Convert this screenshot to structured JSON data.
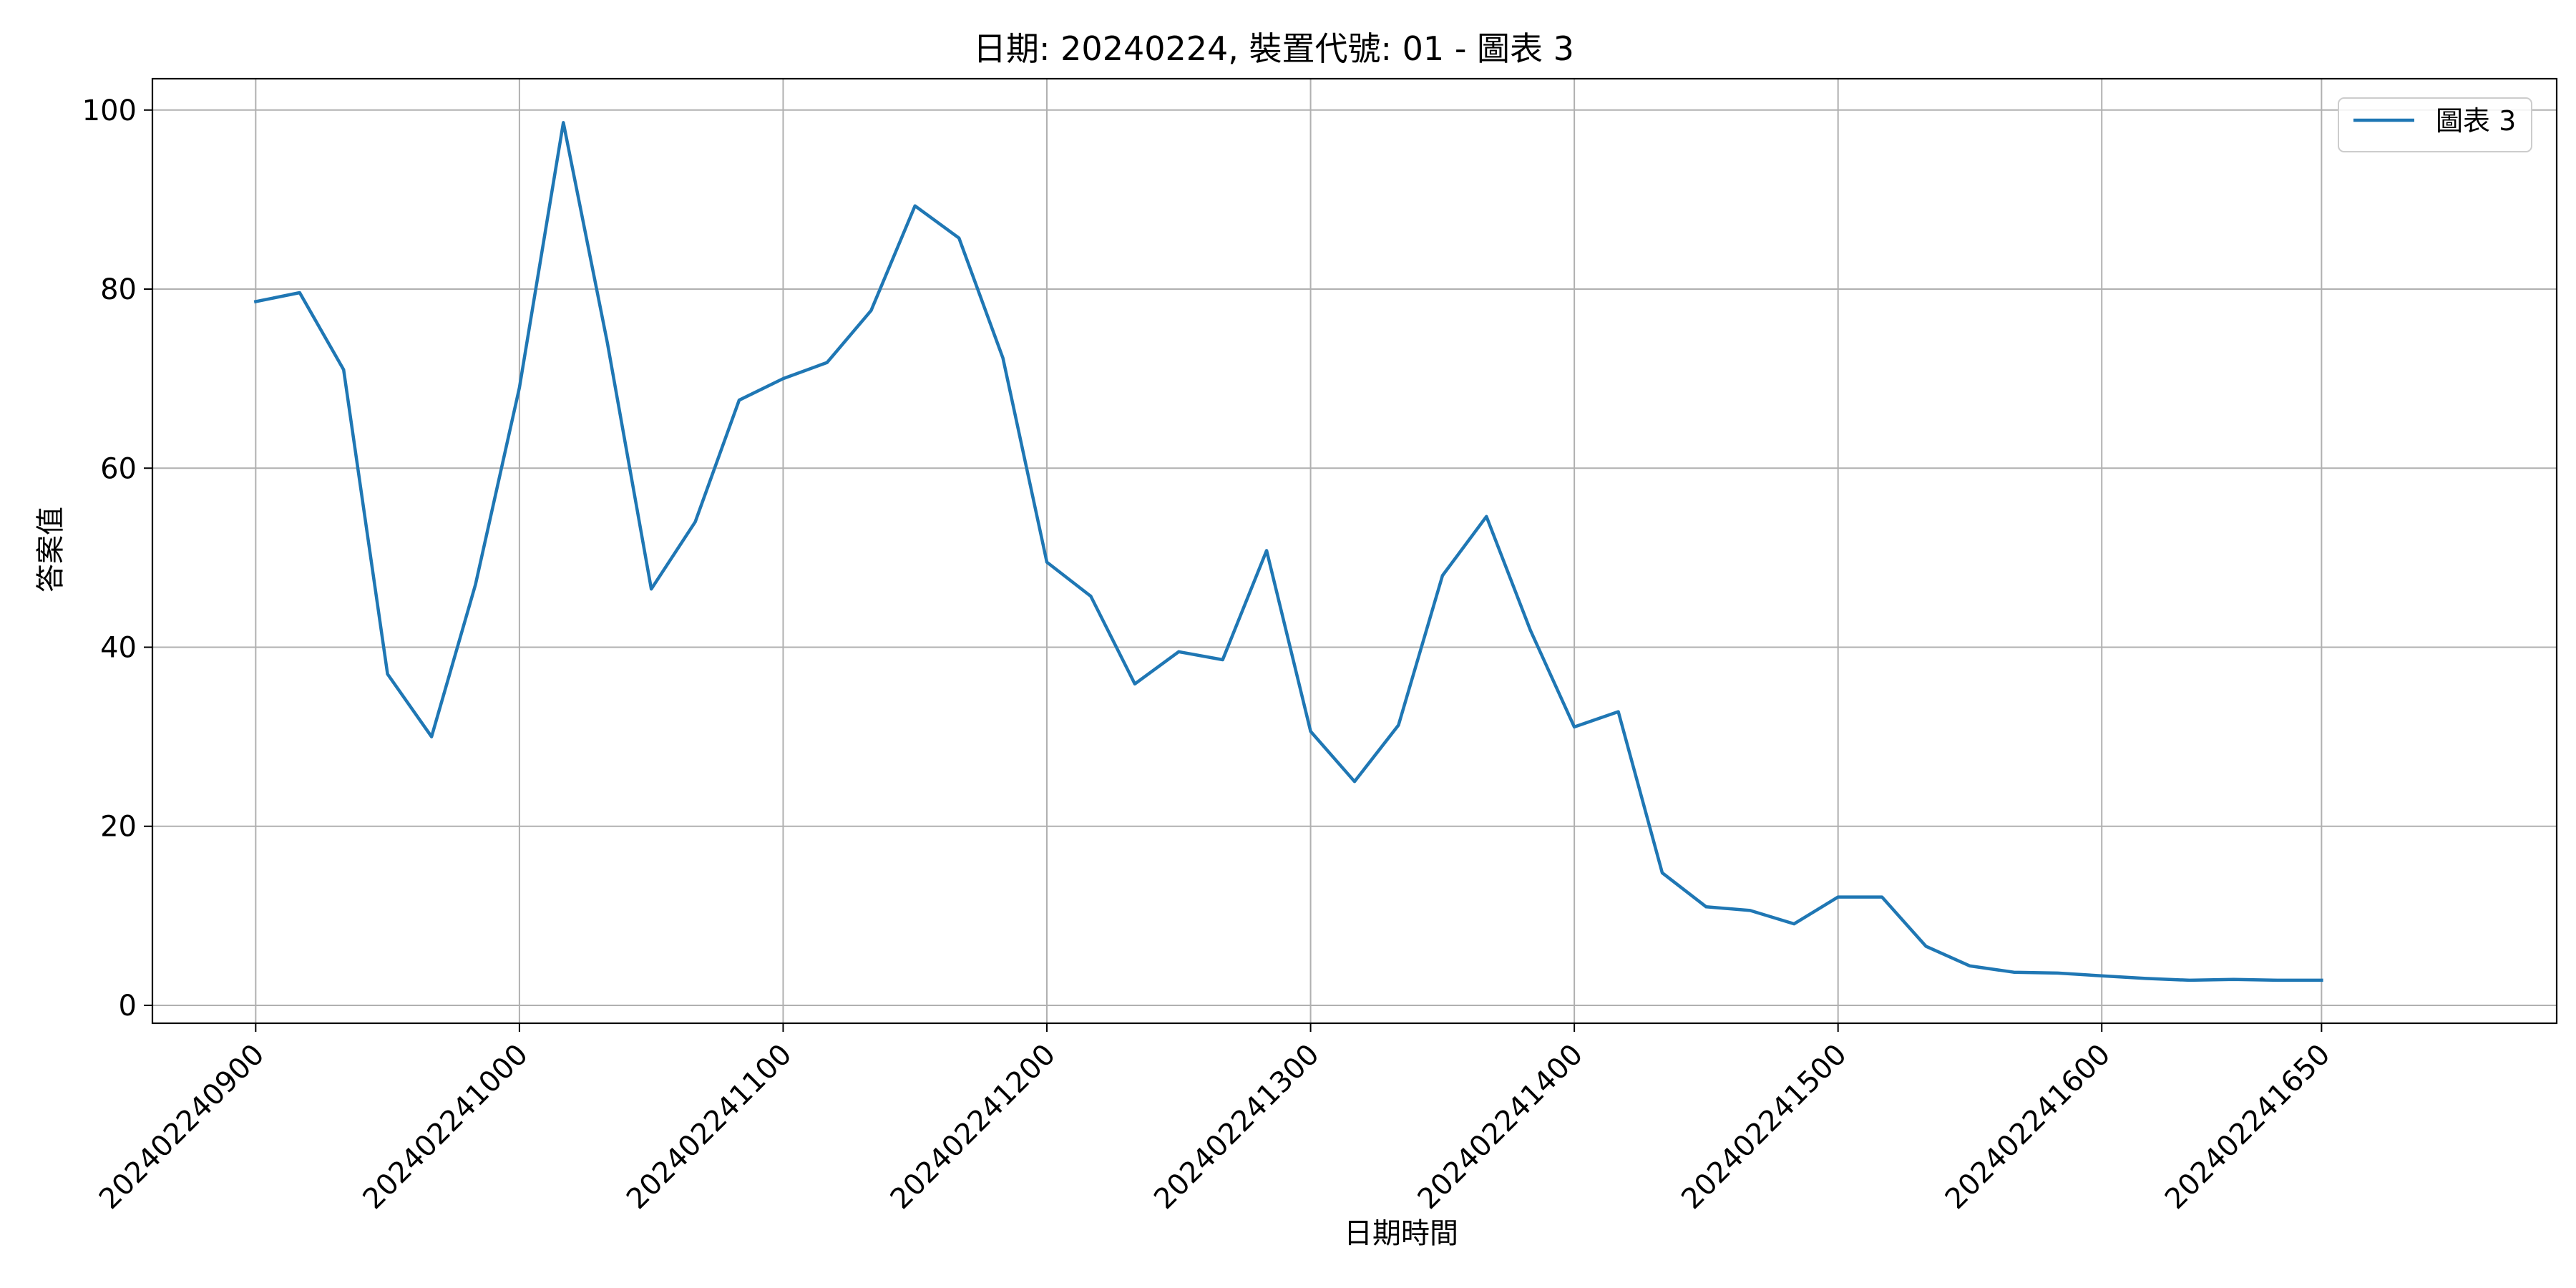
{
  "chart_data": {
    "type": "line",
    "title": "日期: 20240224, 裝置代號: 01 - 圖表 3",
    "xlabel": "日期時間",
    "ylabel": "答案值",
    "x_ticks": [
      "202402240900",
      "202402241000",
      "202402241100",
      "202402241200",
      "202402241300",
      "202402241400",
      "202402241500",
      "202402241600",
      "202402241650"
    ],
    "y_ticks": [
      "0",
      "20",
      "40",
      "60",
      "80",
      "100"
    ],
    "ylim": [
      -2,
      103.5
    ],
    "xlim_minutes_from_first": [
      -23.5,
      523.5
    ],
    "grid": true,
    "legend_position": "top-right",
    "series": [
      {
        "name": "圖表 3",
        "color": "#1f77b4",
        "x_minutes_from_first": [
          0,
          10,
          20,
          30,
          40,
          50,
          60,
          70,
          80,
          90,
          100,
          110,
          120,
          130,
          140,
          150,
          160,
          170,
          180,
          190,
          200,
          210,
          220,
          230,
          240,
          250,
          260,
          270,
          280,
          290,
          300,
          310,
          320,
          330,
          340,
          350,
          360,
          370,
          380,
          390,
          400,
          410,
          420,
          430,
          440,
          450,
          460,
          470
        ],
        "values": [
          78.6,
          79.6,
          71.0,
          37.0,
          30.0,
          47.0,
          69.0,
          98.6,
          74.0,
          46.5,
          54.0,
          67.6,
          70.0,
          71.8,
          77.6,
          89.3,
          85.7,
          72.3,
          49.5,
          45.7,
          35.9,
          39.5,
          38.6,
          50.8,
          30.6,
          25.0,
          31.3,
          48.0,
          54.6,
          41.9,
          31.1,
          32.8,
          14.8,
          11.0,
          10.6,
          9.1,
          12.1,
          12.1,
          6.6,
          4.4,
          3.7,
          3.6,
          3.3,
          3.0,
          2.8,
          2.9,
          2.8,
          2.8
        ]
      }
    ]
  }
}
